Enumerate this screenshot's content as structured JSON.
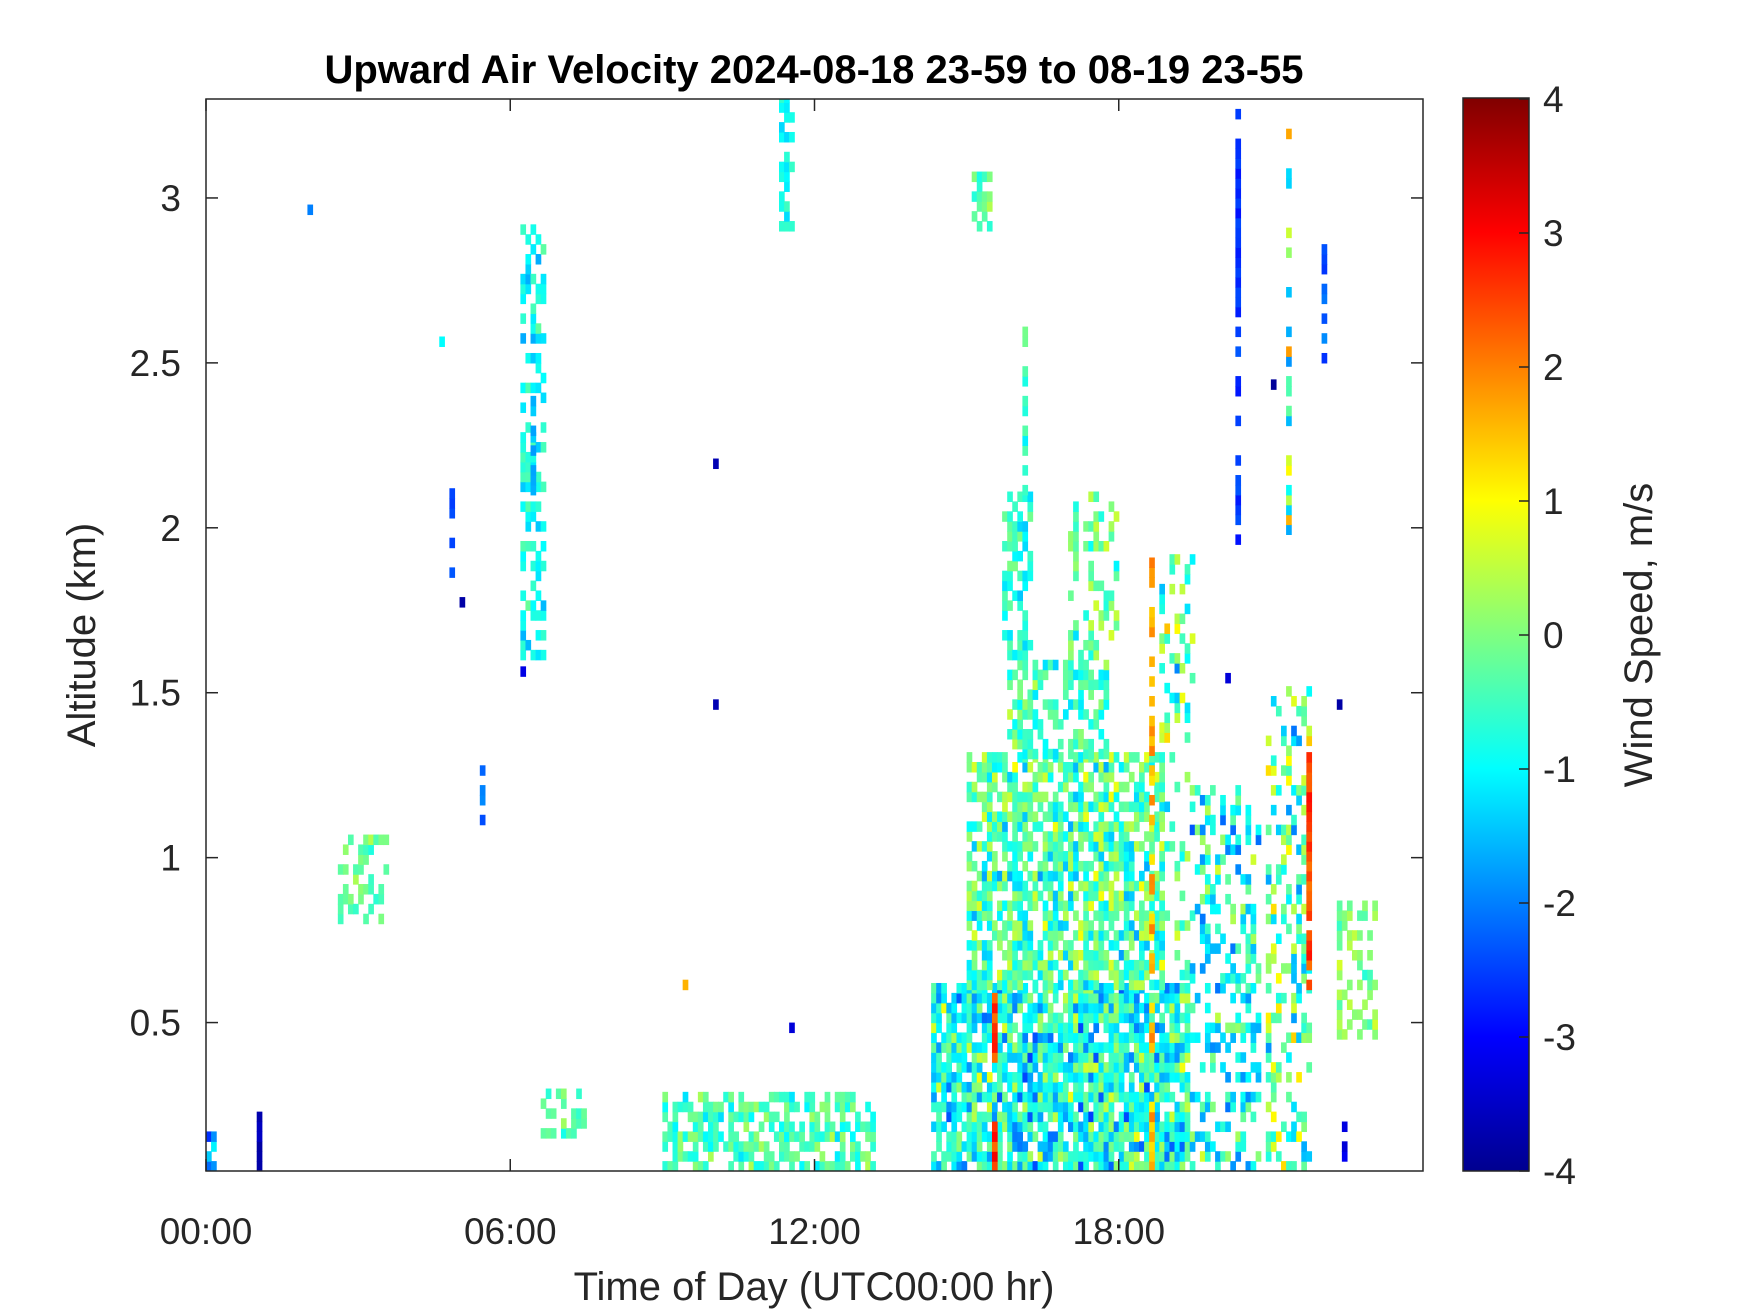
{
  "chart_data": {
    "type": "heatmap",
    "title": "Upward Air Velocity 2024-08-18 23-59 to 08-19 23-55",
    "xlabel": "Time of Day (UTC00:00 hr)",
    "ylabel": "Altitude (km)",
    "colorbar_label": "Wind Speed, m/s",
    "x_tick_values": [
      0,
      6,
      12,
      18
    ],
    "x_tick_labels": [
      "00:00",
      "06:00",
      "12:00",
      "18:00"
    ],
    "y_tick_values": [
      0.5,
      1,
      1.5,
      2,
      2.5,
      3
    ],
    "y_tick_labels": [
      "0.5",
      "1",
      "1.5",
      "2",
      "2.5",
      "3"
    ],
    "colorbar_tick_values": [
      4,
      3,
      2,
      1,
      0,
      -1,
      -2,
      -3,
      -4
    ],
    "colorbar_tick_labels": [
      "4",
      "3",
      "2",
      "1",
      "0",
      "-1",
      "-2",
      "-3",
      "-4"
    ],
    "xlim": [
      0,
      24
    ],
    "ylim": [
      0.05,
      3.3
    ],
    "clim": [
      -4,
      4
    ],
    "colormap": "jet",
    "grid": false,
    "legend": "colorbar-right",
    "cell_width_hours": 0.1,
    "cell_height_km": 0.03,
    "regions": [
      {
        "t0": 14.3,
        "t1": 19.4,
        "z0": 0.05,
        "z1": 0.6,
        "density": 0.85,
        "mean": -0.8,
        "spread": 1.2
      },
      {
        "t0": 15.0,
        "t1": 18.9,
        "z0": 0.6,
        "z1": 1.3,
        "density": 0.7,
        "mean": -0.4,
        "spread": 1.0
      },
      {
        "t0": 15.8,
        "t1": 17.8,
        "z0": 1.3,
        "z1": 1.6,
        "density": 0.55,
        "mean": -0.5,
        "spread": 0.8
      },
      {
        "t0": 15.7,
        "t1": 16.3,
        "z0": 1.6,
        "z1": 2.1,
        "density": 0.6,
        "mean": -0.6,
        "spread": 0.6
      },
      {
        "t0": 16.1,
        "t1": 16.2,
        "z0": 2.1,
        "z1": 2.6,
        "density": 0.7,
        "mean": -0.5,
        "spread": 0.5
      },
      {
        "t0": 17.0,
        "t1": 18.0,
        "z0": 1.6,
        "z1": 2.1,
        "density": 0.3,
        "mean": -0.2,
        "spread": 0.8
      },
      {
        "t0": 18.8,
        "t1": 19.5,
        "z0": 0.6,
        "z1": 1.9,
        "density": 0.25,
        "mean": -0.3,
        "spread": 1.2
      },
      {
        "t0": 9.0,
        "t1": 13.1,
        "z0": 0.05,
        "z1": 0.27,
        "density": 0.6,
        "mean": -0.4,
        "spread": 0.6
      },
      {
        "t0": 6.6,
        "t1": 7.4,
        "z0": 0.15,
        "z1": 0.3,
        "density": 0.5,
        "mean": -0.3,
        "spread": 0.5
      },
      {
        "t0": 2.6,
        "t1": 3.6,
        "z0": 0.8,
        "z1": 1.05,
        "density": 0.45,
        "mean": -0.2,
        "spread": 0.5
      },
      {
        "t0": 6.2,
        "t1": 6.6,
        "z0": 1.6,
        "z1": 2.9,
        "density": 0.45,
        "mean": -0.9,
        "spread": 0.6
      },
      {
        "t0": 19.4,
        "t1": 20.8,
        "z0": 0.05,
        "z1": 1.2,
        "density": 0.35,
        "mean": -0.9,
        "spread": 1.1
      },
      {
        "t0": 20.9,
        "t1": 21.8,
        "z0": 0.05,
        "z1": 1.5,
        "density": 0.4,
        "mean": -0.3,
        "spread": 1.3
      },
      {
        "t0": 22.3,
        "t1": 23.1,
        "z0": 0.45,
        "z1": 0.85,
        "density": 0.4,
        "mean": 0.0,
        "spread": 0.5
      },
      {
        "t0": 11.3,
        "t1": 11.6,
        "z0": 2.9,
        "z1": 3.3,
        "density": 0.55,
        "mean": -0.9,
        "spread": 0.4
      },
      {
        "t0": 15.1,
        "t1": 15.4,
        "z0": 2.9,
        "z1": 3.05,
        "density": 0.55,
        "mean": -0.3,
        "spread": 0.5
      },
      {
        "t0": 0.0,
        "t1": 0.15,
        "z0": 0.05,
        "z1": 0.15,
        "density": 0.8,
        "mean": -2.0,
        "spread": 1.0
      }
    ],
    "columns": [
      {
        "t": 20.3,
        "z0": 1.95,
        "z1": 3.25,
        "mean": -2.6,
        "spread": 0.6,
        "density": 0.8
      },
      {
        "t": 21.3,
        "z0": 1.95,
        "z1": 3.2,
        "mean": 0.0,
        "spread": 4.0,
        "density": 0.55
      },
      {
        "t": 22.0,
        "z0": 2.5,
        "z1": 2.85,
        "mean": -2.3,
        "spread": 0.8,
        "density": 0.7
      },
      {
        "t": 21.7,
        "z0": 0.6,
        "z1": 1.3,
        "mean": 2.5,
        "spread": 0.9,
        "density": 0.8
      },
      {
        "t": 18.6,
        "z0": 0.05,
        "z1": 1.9,
        "mean": 1.6,
        "spread": 1.0,
        "density": 0.6
      },
      {
        "t": 15.5,
        "z0": 0.05,
        "z1": 0.6,
        "mean": 2.6,
        "spread": 1.0,
        "density": 0.7
      },
      {
        "t": 4.8,
        "z0": 1.85,
        "z1": 2.1,
        "mean": -2.4,
        "spread": 0.6,
        "density": 0.8
      },
      {
        "t": 5.4,
        "z0": 1.1,
        "z1": 1.28,
        "mean": -2.2,
        "spread": 0.6,
        "density": 0.8
      },
      {
        "t": 1.0,
        "z0": 0.05,
        "z1": 0.22,
        "mean": -3.6,
        "spread": 0.4,
        "density": 0.9
      },
      {
        "t": 22.4,
        "z0": 0.05,
        "z1": 0.2,
        "mean": -3.0,
        "spread": 0.8,
        "density": 0.8
      },
      {
        "t": 6.4,
        "z0": 2.1,
        "z1": 2.4,
        "mean": -1.6,
        "spread": 0.6,
        "density": 0.7
      }
    ],
    "points": [
      {
        "t": 10.0,
        "z": 2.18,
        "v": -3.6
      },
      {
        "t": 10.0,
        "z": 1.45,
        "v": -3.6
      },
      {
        "t": 11.5,
        "z": 0.47,
        "v": -3.3
      },
      {
        "t": 9.4,
        "z": 0.6,
        "v": 1.6
      },
      {
        "t": 5.0,
        "z": 1.76,
        "v": -3.7
      },
      {
        "t": 6.2,
        "z": 1.55,
        "v": -3.2
      },
      {
        "t": 2.0,
        "z": 2.95,
        "v": -2.0
      },
      {
        "t": 4.6,
        "z": 2.55,
        "v": -1.0
      },
      {
        "t": 20.1,
        "z": 1.53,
        "v": -3.3
      },
      {
        "t": 21.0,
        "z": 2.42,
        "v": -3.8
      },
      {
        "t": 22.3,
        "z": 1.45,
        "v": -3.7
      }
    ]
  }
}
